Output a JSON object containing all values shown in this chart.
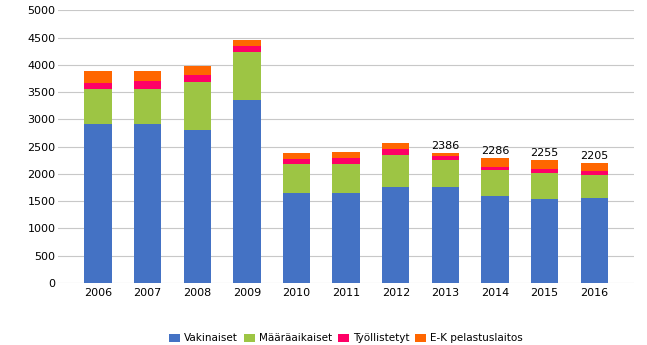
{
  "years": [
    2006,
    2007,
    2008,
    2009,
    2010,
    2011,
    2012,
    2013,
    2014,
    2015,
    2016
  ],
  "vakinaiset": [
    2920,
    2910,
    2800,
    3360,
    1650,
    1650,
    1760,
    1760,
    1600,
    1530,
    1560
  ],
  "maaraikaiset": [
    645,
    650,
    890,
    870,
    530,
    535,
    590,
    490,
    470,
    485,
    420
  ],
  "tyollistetyt": [
    105,
    140,
    115,
    115,
    100,
    100,
    110,
    75,
    60,
    75,
    70
  ],
  "ek_pelastus": [
    210,
    185,
    165,
    105,
    110,
    115,
    110,
    61,
    156,
    165,
    155
  ],
  "totals_labeled": [
    null,
    null,
    null,
    null,
    null,
    null,
    null,
    2386,
    2286,
    2255,
    2205
  ],
  "colors": {
    "vakinaiset": "#4472C4",
    "maaraikaiset": "#9DC544",
    "tyollistetyt": "#FF0066",
    "ek_pelastus": "#FF6600"
  },
  "legend_labels": [
    "Vakinaiset",
    "Määräaikaiset",
    "Työllistetyt",
    "E-K pelastuslaitos"
  ],
  "ylim": [
    0,
    5000
  ],
  "yticks": [
    0,
    500,
    1000,
    1500,
    2000,
    2500,
    3000,
    3500,
    4000,
    4500,
    5000
  ],
  "background_color": "#FFFFFF",
  "grid_color": "#C8C8C8"
}
